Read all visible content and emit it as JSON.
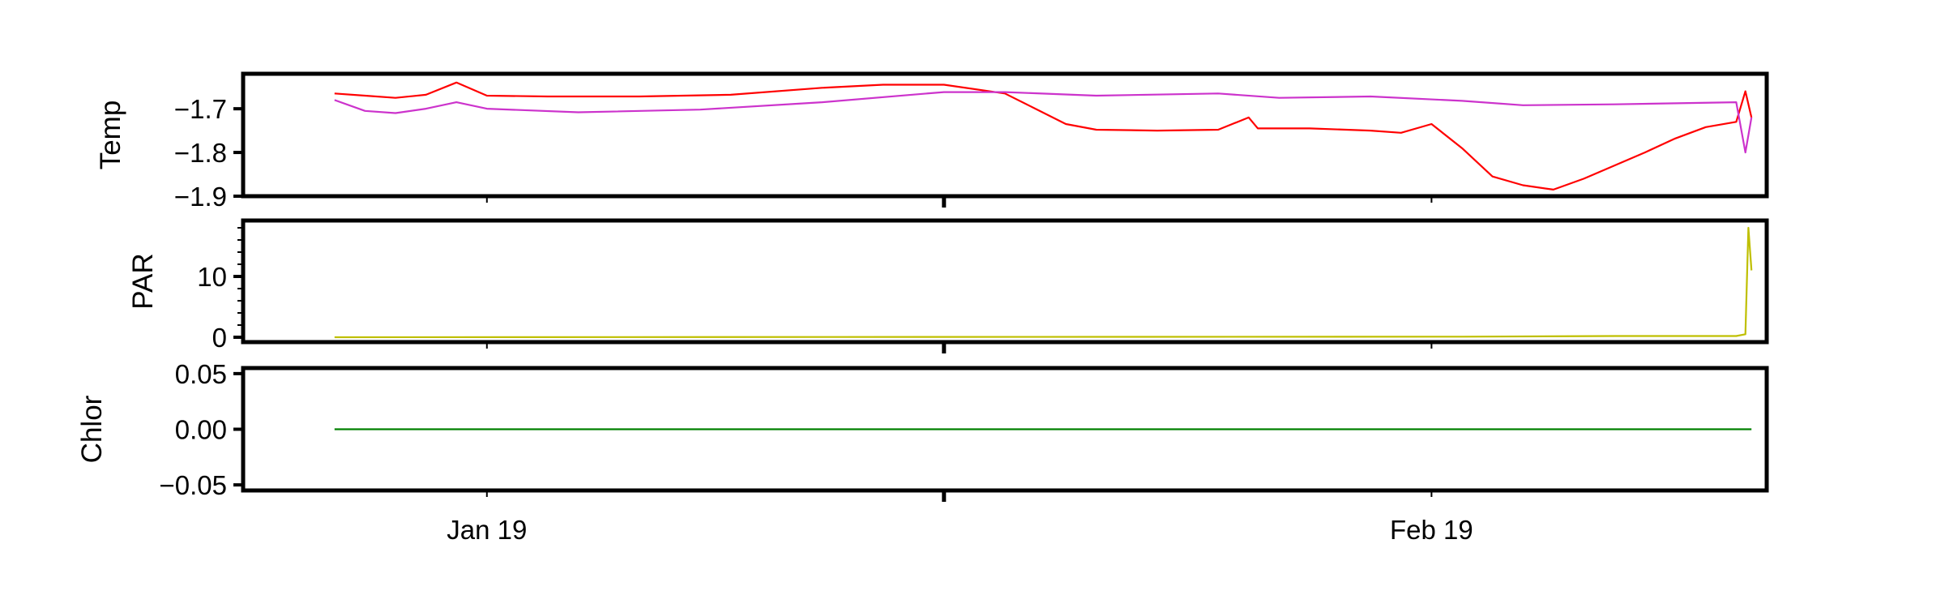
{
  "chart_data": {
    "type": "line",
    "x_axis": {
      "kind": "date",
      "major_ticks": [
        {
          "date": "2019-01-19",
          "label": "Jan 19"
        },
        {
          "date": "2019-02-19",
          "label": "Feb 19"
        }
      ],
      "minor_ticks": [
        "2019-02-03"
      ],
      "range": [
        "2019-01-11",
        "2019-03-02"
      ],
      "shared": true
    },
    "panels": [
      {
        "id": "temp",
        "ylabel": "Temp",
        "ylim": [
          -1.9,
          -1.62
        ],
        "yticks": [
          {
            "value": -1.7,
            "label": "−1.7"
          },
          {
            "value": -1.8,
            "label": "−1.8"
          },
          {
            "value": -1.9,
            "label": "−1.9"
          }
        ],
        "series": [
          {
            "color": "#ff0000",
            "points": [
              [
                "2019-01-14",
                -1.665
              ],
              [
                "2019-01-15",
                -1.67
              ],
              [
                "2019-01-16",
                -1.675
              ],
              [
                "2019-01-17",
                -1.668
              ],
              [
                "2019-01-18",
                -1.64
              ],
              [
                "2019-01-19",
                -1.67
              ],
              [
                "2019-01-21",
                -1.672
              ],
              [
                "2019-01-24",
                -1.672
              ],
              [
                "2019-01-27",
                -1.668
              ],
              [
                "2019-01-30",
                -1.652
              ],
              [
                "2019-02-01",
                -1.645
              ],
              [
                "2019-02-03",
                -1.645
              ],
              [
                "2019-02-05",
                -1.665
              ],
              [
                "2019-02-06",
                -1.7
              ],
              [
                "2019-02-07",
                -1.735
              ],
              [
                "2019-02-08",
                -1.748
              ],
              [
                "2019-02-10",
                -1.75
              ],
              [
                "2019-02-12",
                -1.748
              ],
              [
                "2019-02-13",
                -1.72
              ],
              [
                "2019-02-13.3",
                -1.745
              ],
              [
                "2019-02-15",
                -1.745
              ],
              [
                "2019-02-17",
                -1.75
              ],
              [
                "2019-02-18",
                -1.755
              ],
              [
                "2019-02-19",
                -1.735
              ],
              [
                "2019-02-20",
                -1.79
              ],
              [
                "2019-02-21",
                -1.855
              ],
              [
                "2019-02-22",
                -1.875
              ],
              [
                "2019-02-23",
                -1.885
              ],
              [
                "2019-02-24",
                -1.86
              ],
              [
                "2019-02-25",
                -1.83
              ],
              [
                "2019-02-26",
                -1.8
              ],
              [
                "2019-02-27",
                -1.768
              ],
              [
                "2019-02-28",
                -1.742
              ],
              [
                "2019-03-01",
                -1.73
              ],
              [
                "2019-03-01.3",
                -1.66
              ],
              [
                "2019-03-01.5",
                -1.72
              ]
            ]
          },
          {
            "color": "#cc33cc",
            "points": [
              [
                "2019-01-14",
                -1.68
              ],
              [
                "2019-01-15",
                -1.705
              ],
              [
                "2019-01-16",
                -1.71
              ],
              [
                "2019-01-17",
                -1.7
              ],
              [
                "2019-01-18",
                -1.685
              ],
              [
                "2019-01-19",
                -1.7
              ],
              [
                "2019-01-22",
                -1.708
              ],
              [
                "2019-01-26",
                -1.702
              ],
              [
                "2019-01-30",
                -1.685
              ],
              [
                "2019-02-03",
                -1.662
              ],
              [
                "2019-02-05",
                -1.662
              ],
              [
                "2019-02-08",
                -1.67
              ],
              [
                "2019-02-12",
                -1.665
              ],
              [
                "2019-02-14",
                -1.675
              ],
              [
                "2019-02-17",
                -1.672
              ],
              [
                "2019-02-20",
                -1.682
              ],
              [
                "2019-02-22",
                -1.692
              ],
              [
                "2019-02-25",
                -1.69
              ],
              [
                "2019-03-01",
                -1.685
              ],
              [
                "2019-03-01.3",
                -1.8
              ],
              [
                "2019-03-01.5",
                -1.72
              ]
            ]
          }
        ]
      },
      {
        "id": "par",
        "ylabel": "PAR",
        "ylim": [
          -0.8,
          19.2
        ],
        "yticks": [
          {
            "value": 0,
            "label": "0"
          },
          {
            "value": 10,
            "label": "10"
          }
        ],
        "series": [
          {
            "color": "#bfbf00",
            "points": [
              [
                "2019-01-14",
                0.0
              ],
              [
                "2019-02-20",
                0.1
              ],
              [
                "2019-02-25",
                0.2
              ],
              [
                "2019-03-01",
                0.2
              ],
              [
                "2019-03-01.3",
                0.5
              ],
              [
                "2019-03-01.4",
                18.0
              ],
              [
                "2019-03-01.5",
                11.0
              ]
            ]
          }
        ]
      },
      {
        "id": "chlor",
        "ylabel": "Chlor",
        "ylim": [
          -0.055,
          0.055
        ],
        "yticks": [
          {
            "value": 0.05,
            "label": "0.05"
          },
          {
            "value": 0.0,
            "label": "0.00"
          },
          {
            "value": -0.05,
            "label": "−0.05"
          }
        ],
        "series": [
          {
            "color": "#008000",
            "points": [
              [
                "2019-01-14",
                0.0
              ],
              [
                "2019-03-01.5",
                0.0
              ]
            ]
          }
        ]
      }
    ]
  }
}
